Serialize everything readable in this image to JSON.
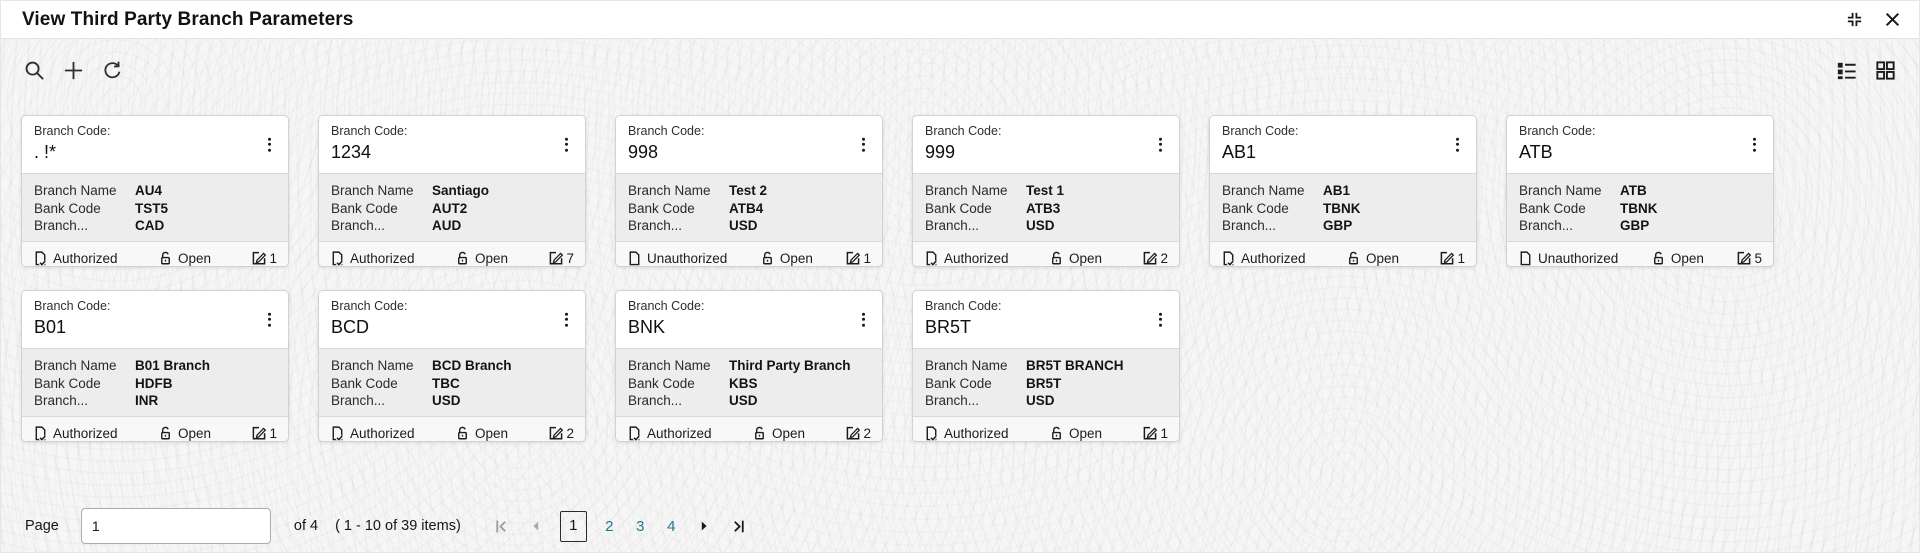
{
  "header": {
    "title": "View Third Party Branch Parameters",
    "window_icons": [
      "collapse-icon",
      "close-icon"
    ]
  },
  "toolbar": {
    "left_icons": [
      "search-icon",
      "add-icon",
      "refresh-icon"
    ],
    "right_icons": [
      "list-view-icon",
      "grid-view-icon"
    ]
  },
  "card_labels": {
    "code": "Branch Code:",
    "branch_name": "Branch Name",
    "bank_code": "Bank Code",
    "branch_truncated": "Branch...",
    "open": "Open"
  },
  "cards": [
    {
      "code": ". !*",
      "branch_name": "AU4",
      "bank_code": "TST5",
      "currency": "CAD",
      "status": "Authorized",
      "lock": "Open",
      "edit_count": "1"
    },
    {
      "code": "1234",
      "branch_name": "Santiago",
      "bank_code": "AUT2",
      "currency": "AUD",
      "status": "Authorized",
      "lock": "Open",
      "edit_count": "7"
    },
    {
      "code": "998",
      "branch_name": "Test 2",
      "bank_code": "ATB4",
      "currency": "USD",
      "status": "Unauthorized",
      "lock": "Open",
      "edit_count": "1"
    },
    {
      "code": "999",
      "branch_name": "Test 1",
      "bank_code": "ATB3",
      "currency": "USD",
      "status": "Authorized",
      "lock": "Open",
      "edit_count": "2"
    },
    {
      "code": "AB1",
      "branch_name": "AB1",
      "bank_code": "TBNK",
      "currency": "GBP",
      "status": "Authorized",
      "lock": "Open",
      "edit_count": "1"
    },
    {
      "code": "ATB",
      "branch_name": "ATB",
      "bank_code": "TBNK",
      "currency": "GBP",
      "status": "Unauthorized",
      "lock": "Open",
      "edit_count": "5"
    },
    {
      "code": "B01",
      "branch_name": "B01 Branch",
      "bank_code": "HDFB",
      "currency": "INR",
      "status": "Authorized",
      "lock": "Open",
      "edit_count": "1"
    },
    {
      "code": "BCD",
      "branch_name": "BCD Branch",
      "bank_code": "TBC",
      "currency": "USD",
      "status": "Authorized",
      "lock": "Open",
      "edit_count": "2"
    },
    {
      "code": "BNK",
      "branch_name": "Third Party Branch",
      "bank_code": "KBS",
      "currency": "USD",
      "status": "Authorized",
      "lock": "Open",
      "edit_count": "2"
    },
    {
      "code": "BR5T",
      "branch_name": "BR5T BRANCH",
      "bank_code": "BR5T",
      "currency": "USD",
      "status": "Authorized",
      "lock": "Open",
      "edit_count": "1"
    }
  ],
  "pagination": {
    "page_label": "Page",
    "page_value": "1",
    "of_label": "of 4",
    "items_label": "( 1 - 10 of 39 items)",
    "pages": [
      "1",
      "2",
      "3",
      "4"
    ],
    "current_page": "1"
  },
  "colors": {
    "link_teal": "#20798c",
    "text": "#161616",
    "card_body_bg": "#ededed"
  }
}
